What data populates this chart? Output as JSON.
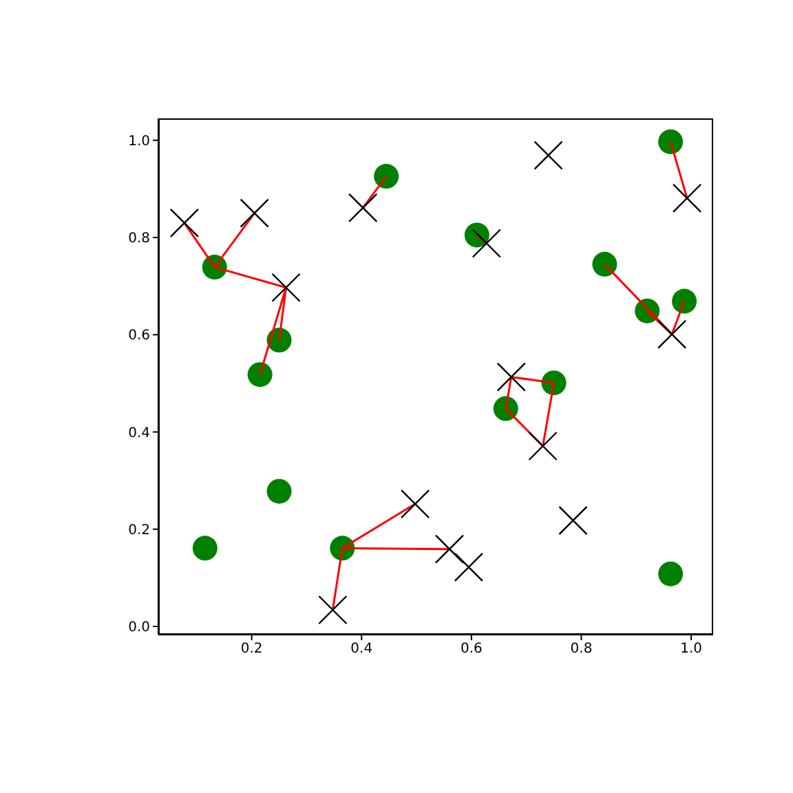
{
  "chart_data": {
    "type": "scatter",
    "xlim": [
      0.03,
      1.04
    ],
    "ylim": [
      -0.017,
      1.045
    ],
    "xticks": [
      0.2,
      0.4,
      0.6,
      0.8,
      {
        "value": 1,
        "label": "1.0"
      }
    ],
    "yticks": [
      {
        "value": 0,
        "label": "0.0"
      },
      0.2,
      0.4,
      0.6,
      0.8,
      {
        "value": 1,
        "label": "1.0"
      }
    ],
    "series": [
      {
        "marker": "circle",
        "color": "#008000",
        "x": [
          0.1325,
          0.25,
          0.215,
          0.445,
          0.61,
          0.8425,
          0.92,
          0.9875,
          0.9625,
          0.6625,
          0.75,
          0.25,
          0.115,
          0.365,
          0.9625
        ],
        "values": [
          0.739,
          0.589,
          0.518,
          0.926,
          0.805,
          0.745,
          0.649,
          0.669,
          0.997,
          0.448,
          0.501,
          0.278,
          0.161,
          0.161,
          0.108
        ]
      },
      {
        "type": "line",
        "color": "#ff0000",
        "x": [
          0.1325,
          0.0775
        ],
        "values": [
          0.739,
          0.83
        ]
      },
      {
        "type": "line",
        "color": "#ff0000",
        "x": [
          0.1325,
          0.205
        ],
        "values": [
          0.739,
          0.85
        ]
      },
      {
        "type": "line",
        "color": "#ff0000",
        "x": [
          0.1325,
          0.2625
        ],
        "values": [
          0.739,
          0.697
        ]
      },
      {
        "type": "line",
        "color": "#ff0000",
        "x": [
          0.25,
          0.2625
        ],
        "values": [
          0.589,
          0.697
        ]
      },
      {
        "type": "line",
        "color": "#ff0000",
        "x": [
          0.215,
          0.2625
        ],
        "values": [
          0.518,
          0.697
        ]
      },
      {
        "type": "line",
        "color": "#ff0000",
        "x": [
          0.445,
          0.4025
        ],
        "values": [
          0.926,
          0.861
        ]
      },
      {
        "type": "line",
        "color": "#ff0000",
        "x": [
          0.61,
          0.6275
        ],
        "values": [
          0.805,
          0.788
        ]
      },
      {
        "type": "line",
        "color": "#ff0000",
        "x": [
          0.8425,
          0.965
        ],
        "values": [
          0.745,
          0.601
        ]
      },
      {
        "type": "line",
        "color": "#ff0000",
        "x": [
          0.92,
          0.965
        ],
        "values": [
          0.649,
          0.601
        ]
      },
      {
        "type": "line",
        "color": "#ff0000",
        "x": [
          0.9875,
          0.965
        ],
        "values": [
          0.669,
          0.601
        ]
      },
      {
        "type": "line",
        "color": "#ff0000",
        "x": [
          0.9625,
          0.9925
        ],
        "values": [
          0.997,
          0.881
        ]
      },
      {
        "type": "line",
        "color": "#ff0000",
        "x": [
          0.6625,
          0.6725
        ],
        "values": [
          0.448,
          0.513
        ]
      },
      {
        "type": "line",
        "color": "#ff0000",
        "x": [
          0.6625,
          0.73
        ],
        "values": [
          0.448,
          0.371
        ]
      },
      {
        "type": "line",
        "color": "#ff0000",
        "x": [
          0.75,
          0.6725
        ],
        "values": [
          0.501,
          0.513
        ]
      },
      {
        "type": "line",
        "color": "#ff0000",
        "x": [
          0.75,
          0.73
        ],
        "values": [
          0.501,
          0.371
        ]
      },
      {
        "type": "line",
        "color": "#ff0000",
        "x": [
          0.365,
          0.4975
        ],
        "values": [
          0.161,
          0.252
        ]
      },
      {
        "type": "line",
        "color": "#ff0000",
        "x": [
          0.365,
          0.56
        ],
        "values": [
          0.161,
          0.159
        ]
      },
      {
        "type": "line",
        "color": "#ff0000",
        "x": [
          0.365,
          0.3475
        ],
        "values": [
          0.161,
          0.034
        ]
      },
      {
        "marker": "cross",
        "color": "#000000",
        "x": [
          0.0775,
          0.205,
          0.2625,
          0.4025,
          0.74,
          0.6275,
          0.9925,
          0.965,
          0.6725,
          0.73,
          0.785,
          0.4975,
          0.56,
          0.595,
          0.3475
        ],
        "values": [
          0.83,
          0.85,
          0.697,
          0.861,
          0.969,
          0.788,
          0.881,
          0.601,
          0.513,
          0.371,
          0.218,
          0.252,
          0.159,
          0.122,
          0.034
        ]
      }
    ]
  }
}
